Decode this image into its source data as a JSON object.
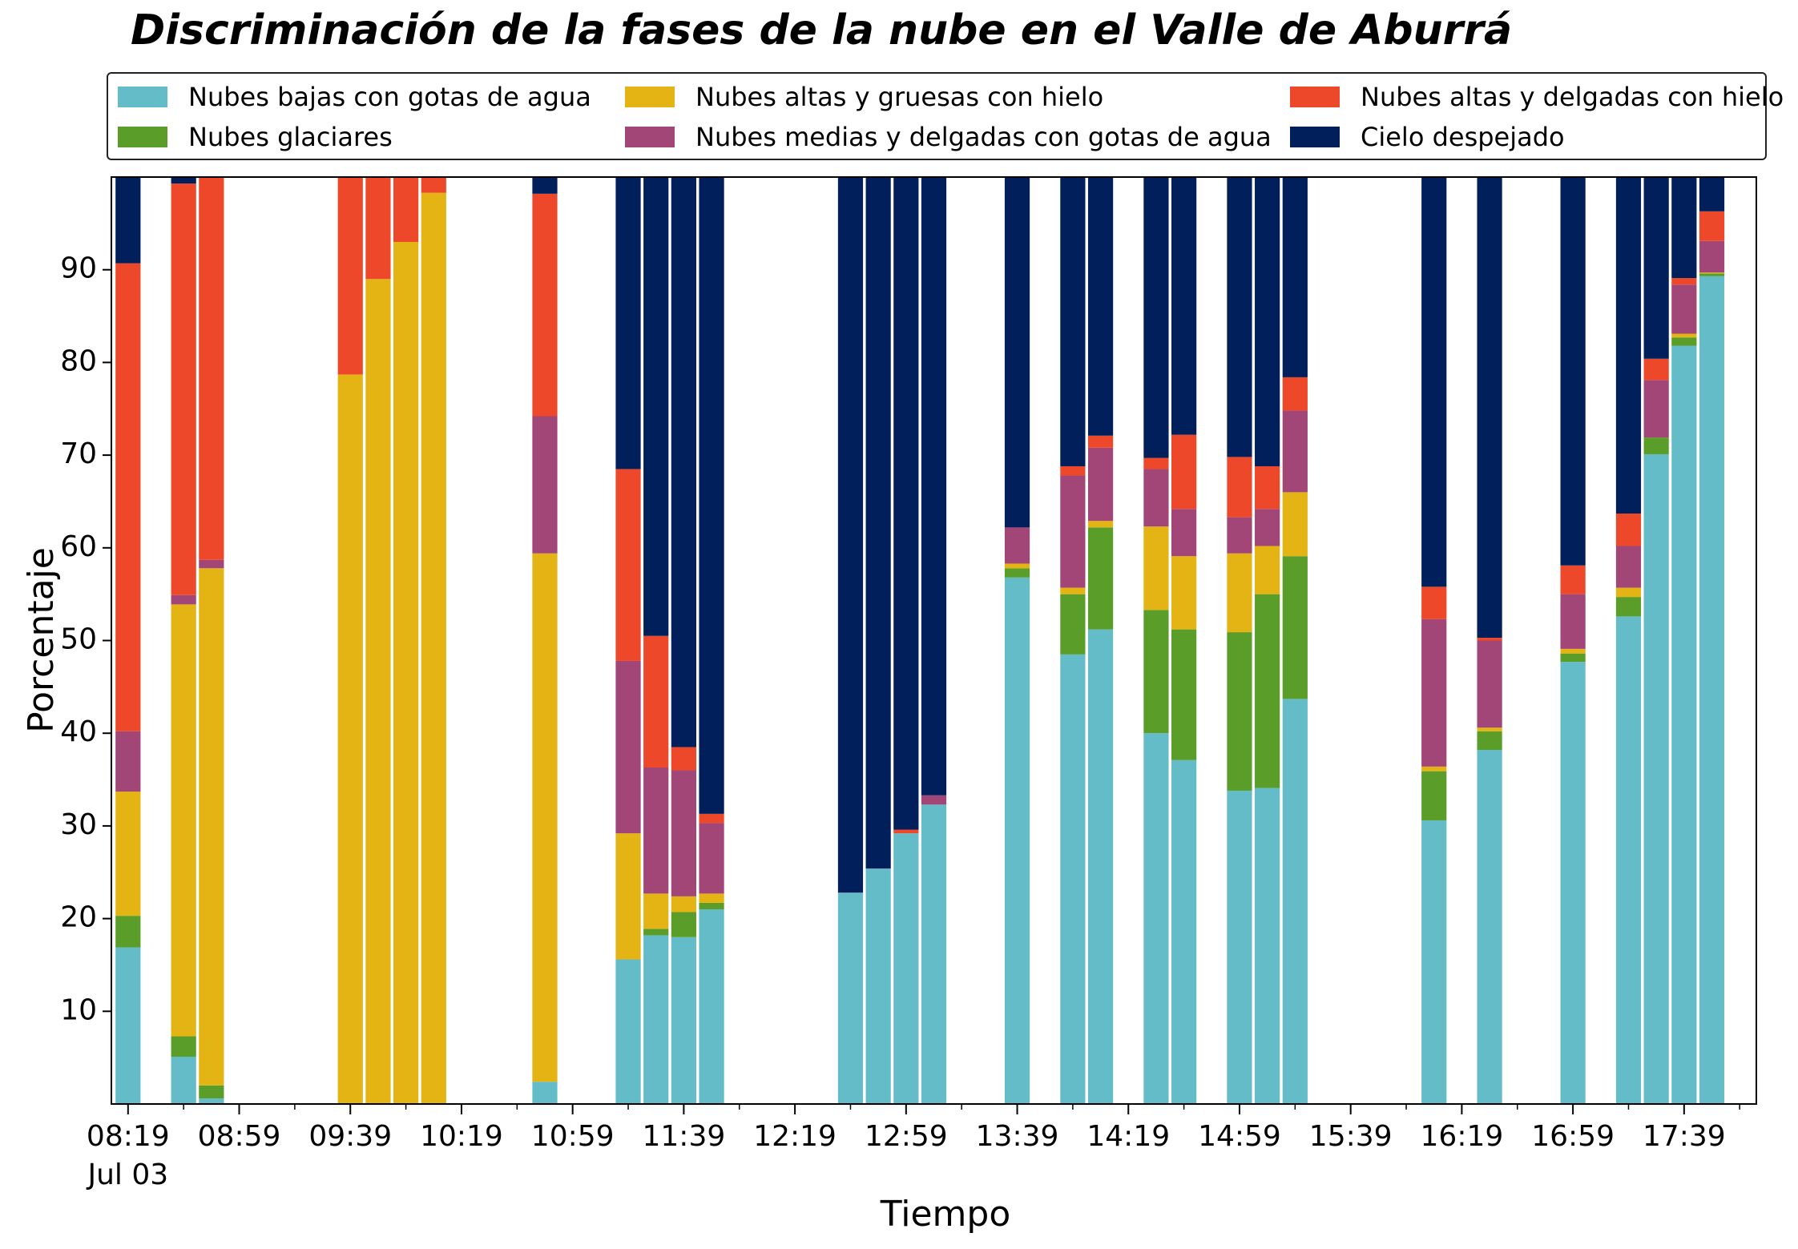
{
  "chart_data": {
    "type": "bar",
    "stacked": true,
    "title": "Discriminación de la fases de la nube en el Valle de Aburrá",
    "xlabel": "Tiempo",
    "ylabel": "Porcentaje",
    "ylim": [
      0,
      100
    ],
    "yticks": [
      10,
      20,
      30,
      40,
      50,
      60,
      70,
      80,
      90
    ],
    "grid": false,
    "legend_position": "top",
    "x_range": [
      "08:13",
      "18:05"
    ],
    "xticks": [
      {
        "t": "08:19",
        "label": "08:19",
        "sublabel": "Jul 03"
      },
      {
        "t": "08:59",
        "label": "08:59"
      },
      {
        "t": "09:39",
        "label": "09:39"
      },
      {
        "t": "10:19",
        "label": "10:19"
      },
      {
        "t": "10:59",
        "label": "10:59"
      },
      {
        "t": "11:39",
        "label": "11:39"
      },
      {
        "t": "12:19",
        "label": "12:19"
      },
      {
        "t": "12:59",
        "label": "12:59"
      },
      {
        "t": "13:39",
        "label": "13:39"
      },
      {
        "t": "14:19",
        "label": "14:19"
      },
      {
        "t": "14:59",
        "label": "14:59"
      },
      {
        "t": "15:39",
        "label": "15:39"
      },
      {
        "t": "16:19",
        "label": "16:19"
      },
      {
        "t": "16:59",
        "label": "16:59"
      },
      {
        "t": "17:39",
        "label": "17:39"
      }
    ],
    "minor_ticks": [
      "08:39",
      "09:19",
      "09:59",
      "10:39",
      "11:19",
      "11:59",
      "12:39",
      "13:19",
      "13:59",
      "14:39",
      "15:19",
      "15:59",
      "16:39",
      "17:19",
      "17:59"
    ],
    "bar_width_minutes": 9,
    "series": [
      {
        "name": "Nubes bajas con gotas de agua",
        "color": "#64BCC8"
      },
      {
        "name": "Nubes glaciares",
        "color": "#5A9E29"
      },
      {
        "name": "Nubes altas y gruesas con hielo",
        "color": "#E3B414"
      },
      {
        "name": "Nubes medias y delgadas con gotas de agua",
        "color": "#A24577"
      },
      {
        "name": "Nubes altas y delgadas con hielo",
        "color": "#EE482B"
      },
      {
        "name": "Cielo despejado",
        "color": "#001F5B"
      }
    ],
    "bars": [
      {
        "t": "08:19",
        "values": [
          16.9,
          3.4,
          13.4,
          6.5,
          50.5,
          9.3
        ]
      },
      {
        "t": "08:39",
        "values": [
          5.1,
          2.2,
          46.6,
          1.0,
          44.4,
          0.7
        ]
      },
      {
        "t": "08:49",
        "values": [
          0.6,
          1.4,
          55.8,
          0.9,
          41.3,
          0.0
        ]
      },
      {
        "t": "09:39",
        "values": [
          0,
          0,
          78.7,
          0,
          21.3,
          0
        ]
      },
      {
        "t": "09:49",
        "values": [
          0,
          0,
          89.0,
          0,
          11.0,
          0
        ]
      },
      {
        "t": "09:59",
        "values": [
          0,
          0,
          93.0,
          0,
          7.0,
          0
        ]
      },
      {
        "t": "10:09",
        "values": [
          0,
          0,
          98.3,
          0,
          1.7,
          0
        ]
      },
      {
        "t": "10:49",
        "values": [
          2.4,
          0,
          57.0,
          14.8,
          24.0,
          1.8
        ]
      },
      {
        "t": "11:19",
        "values": [
          15.6,
          0,
          13.6,
          18.6,
          20.7,
          31.5
        ]
      },
      {
        "t": "11:29",
        "values": [
          18.2,
          0.7,
          3.8,
          13.6,
          14.2,
          49.5
        ]
      },
      {
        "t": "11:39",
        "values": [
          18.0,
          2.7,
          1.7,
          13.6,
          2.5,
          61.5
        ]
      },
      {
        "t": "11:49",
        "values": [
          21.0,
          0.7,
          1.0,
          7.6,
          1.0,
          68.7
        ]
      },
      {
        "t": "12:39",
        "values": [
          22.8,
          0,
          0,
          0,
          0,
          77.2
        ]
      },
      {
        "t": "12:49",
        "values": [
          25.4,
          0,
          0,
          0,
          0,
          74.6
        ]
      },
      {
        "t": "12:59",
        "values": [
          29.2,
          0,
          0,
          0,
          0.4,
          70.4
        ]
      },
      {
        "t": "13:09",
        "values": [
          32.3,
          0,
          0,
          1.0,
          0,
          66.7
        ]
      },
      {
        "t": "13:39",
        "values": [
          56.8,
          1.0,
          0.5,
          3.9,
          0,
          37.8
        ]
      },
      {
        "t": "13:59",
        "values": [
          48.5,
          6.5,
          0.7,
          12.1,
          1.0,
          31.2
        ]
      },
      {
        "t": "14:09",
        "values": [
          51.2,
          11.0,
          0.7,
          7.9,
          1.3,
          27.9
        ]
      },
      {
        "t": "14:29",
        "values": [
          40.0,
          13.3,
          9.0,
          6.2,
          1.2,
          30.3
        ]
      },
      {
        "t": "14:39",
        "values": [
          37.1,
          14.1,
          7.9,
          5.1,
          8.0,
          27.8
        ]
      },
      {
        "t": "14:59",
        "values": [
          33.8,
          17.1,
          8.5,
          3.9,
          6.5,
          30.2
        ]
      },
      {
        "t": "15:09",
        "values": [
          34.1,
          20.9,
          5.2,
          4.0,
          4.6,
          31.2
        ]
      },
      {
        "t": "15:19",
        "values": [
          43.7,
          15.4,
          6.9,
          8.8,
          3.6,
          21.6
        ]
      },
      {
        "t": "16:09",
        "values": [
          30.6,
          5.3,
          0.5,
          15.9,
          3.5,
          44.2
        ]
      },
      {
        "t": "16:29",
        "values": [
          38.2,
          2.0,
          0.4,
          9.4,
          0.3,
          49.7
        ]
      },
      {
        "t": "16:59",
        "values": [
          47.7,
          0.9,
          0.5,
          5.9,
          3.1,
          41.9
        ]
      },
      {
        "t": "17:19",
        "values": [
          52.6,
          2.1,
          1.0,
          4.5,
          3.5,
          36.3
        ]
      },
      {
        "t": "17:29",
        "values": [
          70.1,
          1.8,
          0,
          6.2,
          2.3,
          19.6
        ]
      },
      {
        "t": "17:39",
        "values": [
          81.8,
          0.9,
          0.4,
          5.3,
          0.7,
          10.9
        ]
      },
      {
        "t": "17:49",
        "values": [
          89.3,
          0.3,
          0.1,
          3.4,
          3.2,
          3.7
        ]
      }
    ]
  }
}
